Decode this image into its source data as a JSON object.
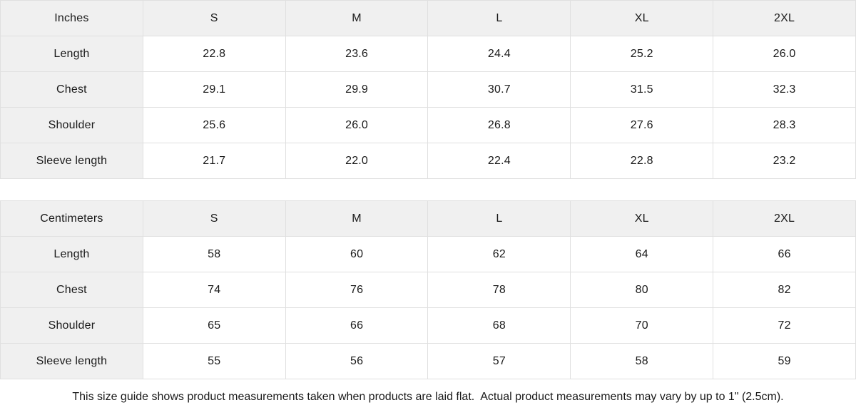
{
  "colors": {
    "header_cell_bg": "#f0f0f0",
    "data_cell_bg": "#ffffff",
    "border": "#e0e0e0",
    "text": "#1a1a1a"
  },
  "size_guide": {
    "tables": [
      {
        "id": "inches",
        "unit_label": "Inches",
        "size_headers": [
          "S",
          "M",
          "L",
          "XL",
          "2XL"
        ],
        "rows": [
          {
            "label": "Length",
            "values": [
              "22.8",
              "23.6",
              "24.4",
              "25.2",
              "26.0"
            ]
          },
          {
            "label": "Chest",
            "values": [
              "29.1",
              "29.9",
              "30.7",
              "31.5",
              "32.3"
            ]
          },
          {
            "label": "Shoulder",
            "values": [
              "25.6",
              "26.0",
              "26.8",
              "27.6",
              "28.3"
            ]
          },
          {
            "label": "Sleeve length",
            "values": [
              "21.7",
              "22.0",
              "22.4",
              "22.8",
              "23.2"
            ]
          }
        ]
      },
      {
        "id": "centimeters",
        "unit_label": "Centimeters",
        "size_headers": [
          "S",
          "M",
          "L",
          "XL",
          "2XL"
        ],
        "rows": [
          {
            "label": "Length",
            "values": [
              "58",
              "60",
              "62",
              "64",
              "66"
            ]
          },
          {
            "label": "Chest",
            "values": [
              "74",
              "76",
              "78",
              "80",
              "82"
            ]
          },
          {
            "label": "Shoulder",
            "values": [
              "65",
              "66",
              "68",
              "70",
              "72"
            ]
          },
          {
            "label": "Sleeve length",
            "values": [
              "55",
              "56",
              "57",
              "58",
              "59"
            ]
          }
        ]
      }
    ],
    "footer_note": "This size guide shows product measurements taken when products are laid flat.  Actual product measurements may vary by up to 1\" (2.5cm)."
  }
}
